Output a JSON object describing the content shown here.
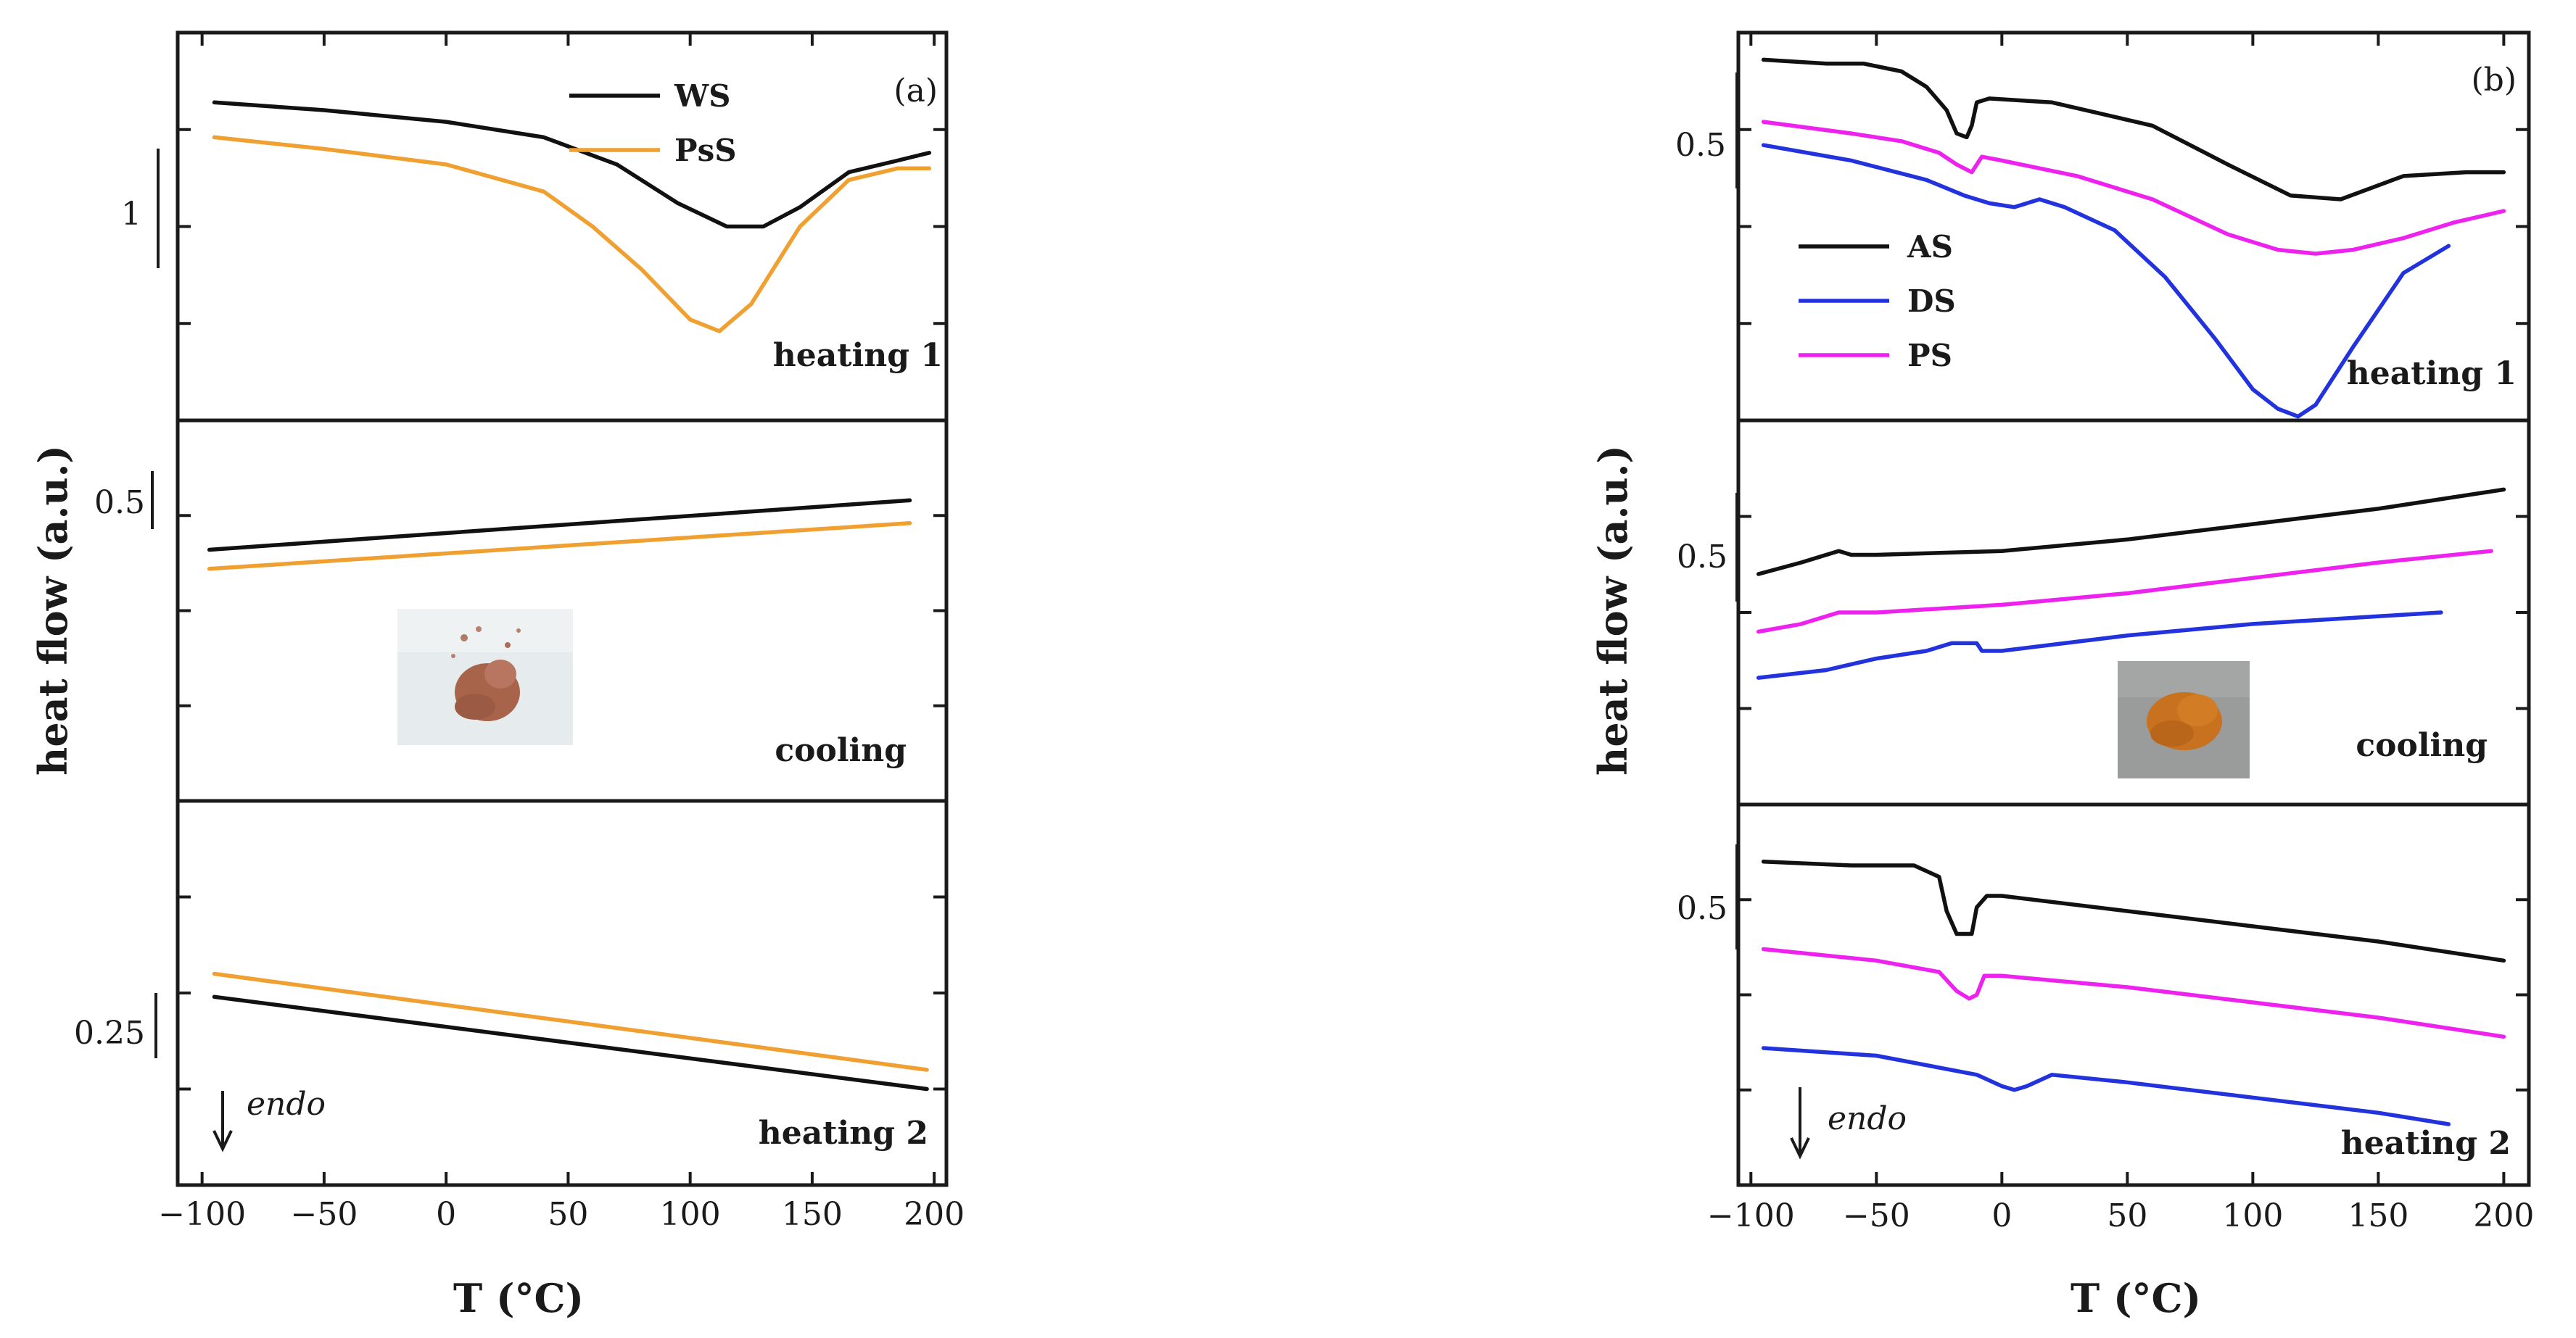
{
  "colors": {
    "WS": "#111111",
    "PsS": "#f0a030",
    "AS": "#111111",
    "DS": "#2233dd",
    "PS": "#ee22ee"
  },
  "chart_data": [
    {
      "id": "a",
      "type": "line",
      "corner_label": "(a)",
      "xlabel": "T (°C)",
      "ylabel": "heat flow (a.u.)",
      "xlim": [
        -110,
        205
      ],
      "x_ticks": [
        -100,
        -50,
        0,
        50,
        100,
        150,
        200
      ],
      "endo_label": "endo",
      "legend": [
        "WS",
        "PsS"
      ],
      "inset": "photo of reddish-brown powder (WS sample)",
      "panels": [
        {
          "name": "heating 1",
          "ylim": [
            0,
            10
          ],
          "scale_bar": "1",
          "series": [
            {
              "name": "WS",
              "x": [
                -95,
                -50,
                0,
                40,
                70,
                95,
                115,
                130,
                145,
                165,
                185,
                198
              ],
              "y": [
                8.2,
                8.0,
                7.7,
                7.3,
                6.6,
                5.6,
                5.0,
                5.0,
                5.5,
                6.4,
                6.7,
                6.9
              ]
            },
            {
              "name": "PsS",
              "x": [
                -95,
                -50,
                0,
                40,
                60,
                80,
                100,
                112,
                125,
                145,
                165,
                185,
                198
              ],
              "y": [
                7.3,
                7.0,
                6.6,
                5.9,
                5.0,
                3.9,
                2.6,
                2.3,
                3.0,
                5.0,
                6.2,
                6.5,
                6.5
              ]
            }
          ]
        },
        {
          "name": "cooling",
          "ylim": [
            0,
            10
          ],
          "scale_bar": "0.5",
          "series": [
            {
              "name": "WS",
              "x": [
                -97,
                190
              ],
              "y": [
                6.6,
                7.9
              ]
            },
            {
              "name": "PsS",
              "x": [
                -97,
                190
              ],
              "y": [
                6.1,
                7.3
              ]
            }
          ]
        },
        {
          "name": "heating 2",
          "ylim": [
            0,
            10
          ],
          "scale_bar": "0.25",
          "series": [
            {
              "name": "WS",
              "x": [
                -95,
                197
              ],
              "y": [
                4.9,
                2.5
              ]
            },
            {
              "name": "PsS",
              "x": [
                -95,
                197
              ],
              "y": [
                5.5,
                3.0
              ]
            }
          ]
        }
      ]
    },
    {
      "id": "b",
      "type": "line",
      "corner_label": "(b)",
      "xlabel": "T (°C)",
      "ylabel": "heat flow (a.u.)",
      "xlim": [
        -105,
        210
      ],
      "x_ticks": [
        -100,
        -50,
        0,
        50,
        100,
        150,
        200
      ],
      "endo_label": "endo",
      "legend": [
        "AS",
        "DS",
        "PS"
      ],
      "inset": "photo of orange powder (AS sample)",
      "panels": [
        {
          "name": "heating 1",
          "ylim": [
            0,
            10
          ],
          "scale_bar": "0.5",
          "series": [
            {
              "name": "AS",
              "x": [
                -95,
                -70,
                -55,
                -40,
                -30,
                -22,
                -18,
                -14,
                -12,
                -10,
                -5,
                20,
                60,
                90,
                115,
                135,
                160,
                185,
                200
              ],
              "y": [
                9.3,
                9.2,
                9.2,
                9.0,
                8.6,
                8.0,
                7.4,
                7.3,
                7.6,
                8.2,
                8.3,
                8.2,
                7.6,
                6.6,
                5.8,
                5.7,
                6.3,
                6.4,
                6.4
              ]
            },
            {
              "name": "DS",
              "x": [
                -95,
                -60,
                -30,
                -15,
                -5,
                5,
                15,
                25,
                45,
                65,
                85,
                100,
                110,
                118,
                125,
                140,
                160,
                178
              ],
              "y": [
                7.1,
                6.7,
                6.2,
                5.8,
                5.6,
                5.5,
                5.7,
                5.5,
                4.9,
                3.7,
                2.1,
                0.8,
                0.3,
                0.1,
                0.4,
                1.9,
                3.8,
                4.5
              ]
            },
            {
              "name": "PS",
              "x": [
                -95,
                -60,
                -40,
                -25,
                -18,
                -12,
                -8,
                0,
                30,
                60,
                90,
                110,
                125,
                140,
                160,
                180,
                200
              ],
              "y": [
                7.7,
                7.4,
                7.2,
                6.9,
                6.6,
                6.4,
                6.8,
                6.7,
                6.3,
                5.7,
                4.8,
                4.4,
                4.3,
                4.4,
                4.7,
                5.1,
                5.4
              ]
            }
          ]
        },
        {
          "name": "cooling",
          "ylim": [
            0,
            10
          ],
          "scale_bar": "0.5",
          "series": [
            {
              "name": "AS",
              "x": [
                -97,
                -80,
                -65,
                -60,
                -50,
                0,
                50,
                100,
                150,
                200
              ],
              "y": [
                6.0,
                6.3,
                6.6,
                6.5,
                6.5,
                6.6,
                6.9,
                7.3,
                7.7,
                8.2
              ]
            },
            {
              "name": "PS",
              "x": [
                -97,
                -80,
                -65,
                -60,
                -50,
                0,
                50,
                100,
                150,
                195
              ],
              "y": [
                4.5,
                4.7,
                5.0,
                5.0,
                5.0,
                5.2,
                5.5,
                5.9,
                6.3,
                6.6
              ]
            },
            {
              "name": "DS",
              "x": [
                -97,
                -70,
                -50,
                -30,
                -20,
                -10,
                -8,
                0,
                50,
                100,
                150,
                175
              ],
              "y": [
                3.3,
                3.5,
                3.8,
                4.0,
                4.2,
                4.2,
                4.0,
                4.0,
                4.4,
                4.7,
                4.9,
                5.0
              ]
            }
          ]
        },
        {
          "name": "heating 2",
          "ylim": [
            0,
            10
          ],
          "scale_bar": "0.5",
          "series": [
            {
              "name": "AS",
              "x": [
                -95,
                -60,
                -35,
                -25,
                -22,
                -18,
                -12,
                -10,
                -6,
                0,
                50,
                100,
                150,
                200
              ],
              "y": [
                8.5,
                8.4,
                8.4,
                8.1,
                7.2,
                6.6,
                6.6,
                7.3,
                7.6,
                7.6,
                7.2,
                6.8,
                6.4,
                5.9
              ]
            },
            {
              "name": "PS",
              "x": [
                -95,
                -50,
                -25,
                -18,
                -13,
                -10,
                -7,
                0,
                50,
                100,
                150,
                200
              ],
              "y": [
                6.2,
                5.9,
                5.6,
                5.1,
                4.9,
                5.0,
                5.5,
                5.5,
                5.2,
                4.8,
                4.4,
                3.9
              ]
            },
            {
              "name": "DS",
              "x": [
                -95,
                -50,
                -10,
                0,
                5,
                10,
                20,
                50,
                100,
                150,
                178
              ],
              "y": [
                3.6,
                3.4,
                2.9,
                2.6,
                2.5,
                2.6,
                2.9,
                2.7,
                2.3,
                1.9,
                1.6
              ]
            }
          ]
        }
      ]
    }
  ]
}
